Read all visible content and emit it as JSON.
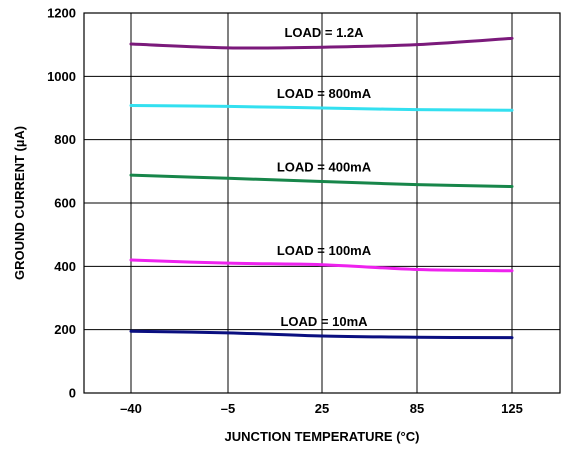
{
  "chart_data": {
    "type": "line",
    "xlabel": "JUNCTION TEMPERATURE (°C)",
    "ylabel": "GROUND CURRENT (µA)",
    "categories": [
      "–40",
      "–5",
      "25",
      "85",
      "125"
    ],
    "ylim": [
      0,
      1200
    ],
    "yticks": [
      0,
      200,
      400,
      600,
      800,
      1000,
      1200
    ],
    "grid": true,
    "legend": "inline labels above each series",
    "series": [
      {
        "name": "LOAD = 1.2A",
        "color": "#7b1a7b",
        "values": [
          1102,
          1090,
          1092,
          1100,
          1120
        ]
      },
      {
        "name": "LOAD = 800mA",
        "color": "#33e0f0",
        "values": [
          908,
          905,
          900,
          895,
          893
        ]
      },
      {
        "name": "LOAD = 400mA",
        "color": "#17864a",
        "values": [
          688,
          678,
          668,
          658,
          652
        ]
      },
      {
        "name": "LOAD = 100mA",
        "color": "#ee22ee",
        "values": [
          420,
          410,
          405,
          390,
          386
        ]
      },
      {
        "name": "LOAD = 10mA",
        "color": "#0a0f80",
        "values": [
          195,
          190,
          180,
          176,
          175
        ]
      }
    ]
  }
}
